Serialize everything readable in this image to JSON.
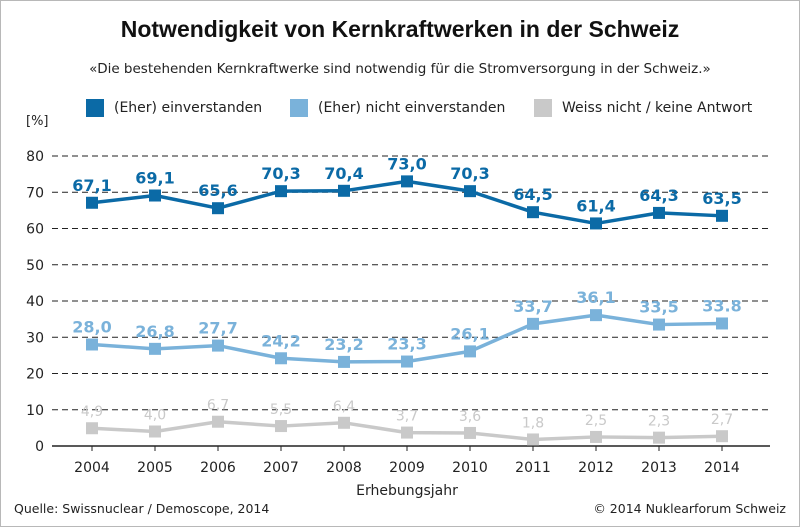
{
  "title": "Notwendigkeit von Kernkraftwerken in der Schweiz",
  "subtitle": "«Die bestehenden Kernkraftwerke sind notwendig für die Stromversorgung in der Schweiz.»",
  "footer": {
    "source": "Quelle: Swissnuclear / Demoscope, 2014",
    "copyright": "© 2014 Nuklearforum Schweiz"
  },
  "colors": {
    "series1": "#0b6aa6",
    "series2": "#7ab2da",
    "series3": "#c9c9c9"
  },
  "chart_data": {
    "type": "line",
    "title": "Notwendigkeit von Kernkraftwerken in der Schweiz",
    "xlabel": "Erhebungsjahr",
    "ylabel": "[%]",
    "ylim": [
      0,
      80
    ],
    "yticks": [
      0,
      10,
      20,
      30,
      40,
      50,
      60,
      70,
      80
    ],
    "grid": true,
    "legend": "top",
    "categories": [
      "2004",
      "2005",
      "2006",
      "2007",
      "2008",
      "2009",
      "2010",
      "2011",
      "2012",
      "2013",
      "2014"
    ],
    "series": [
      {
        "name": "(Eher) einverstanden",
        "values": [
          67.1,
          69.1,
          65.6,
          70.3,
          70.4,
          73.0,
          70.3,
          64.5,
          61.4,
          64.3,
          63.5
        ],
        "labels": [
          "67,1",
          "69,1",
          "65,6",
          "70,3",
          "70,4",
          "73,0",
          "70,3",
          "64,5",
          "61,4",
          "64,3",
          "63,5"
        ],
        "color": "#0b6aa6"
      },
      {
        "name": "(Eher) nicht einverstanden",
        "values": [
          28.0,
          26.8,
          27.7,
          24.2,
          23.2,
          23.3,
          26.1,
          33.7,
          36.1,
          33.5,
          33.8
        ],
        "labels": [
          "28,0",
          "26,8",
          "27,7",
          "24,2",
          "23,2",
          "23,3",
          "26,1",
          "33,7",
          "36,1",
          "33,5",
          "33.8"
        ],
        "color": "#7ab2da"
      },
      {
        "name": "Weiss nicht / keine Antwort",
        "values": [
          4.9,
          4.0,
          6.7,
          5.5,
          6.4,
          3.7,
          3.6,
          1.8,
          2.5,
          2.3,
          2.7
        ],
        "labels": [
          "4,9",
          "4,0",
          "6,7",
          "5,5",
          "6,4",
          "3,7",
          "3,6",
          "1,8",
          "2,5",
          "2,3",
          "2,7"
        ],
        "color": "#c9c9c9"
      }
    ]
  }
}
